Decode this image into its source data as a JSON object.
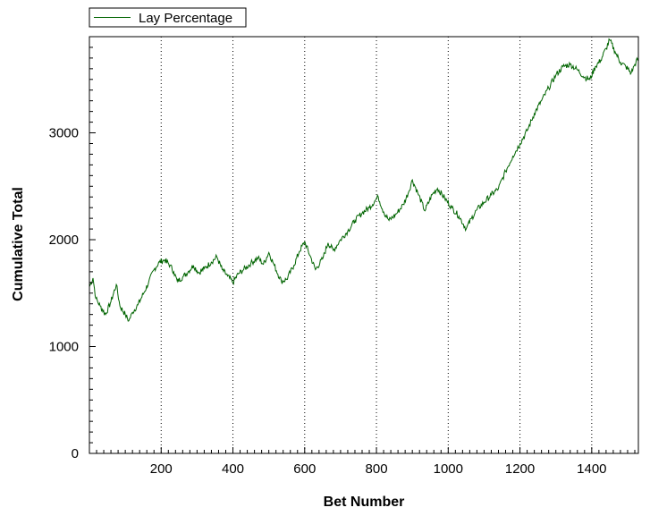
{
  "chart_data": {
    "type": "line",
    "xlabel": "Bet Number",
    "ylabel": "Cumulative Total",
    "xlim": [
      0,
      1530
    ],
    "ylim": [
      0,
      3900
    ],
    "x_ticks": [
      200,
      400,
      600,
      800,
      1000,
      1200,
      1400
    ],
    "y_ticks": [
      0,
      1000,
      2000,
      3000
    ],
    "y_minor_step": 100,
    "x_minor_step": 20,
    "grid": "vertical dotted at major x ticks",
    "legend": {
      "position": "top-left",
      "entries": [
        "Lay Percentage"
      ]
    },
    "colors": {
      "series": "#006400",
      "frame": "#000000",
      "grid": "#000000"
    },
    "series": [
      {
        "name": "Lay Percentage",
        "points": [
          [
            0,
            1560
          ],
          [
            10,
            1640
          ],
          [
            18,
            1450
          ],
          [
            30,
            1380
          ],
          [
            45,
            1300
          ],
          [
            60,
            1420
          ],
          [
            75,
            1580
          ],
          [
            85,
            1380
          ],
          [
            100,
            1300
          ],
          [
            110,
            1240
          ],
          [
            120,
            1320
          ],
          [
            135,
            1390
          ],
          [
            150,
            1490
          ],
          [
            165,
            1600
          ],
          [
            180,
            1720
          ],
          [
            195,
            1790
          ],
          [
            210,
            1810
          ],
          [
            225,
            1760
          ],
          [
            235,
            1700
          ],
          [
            245,
            1610
          ],
          [
            260,
            1650
          ],
          [
            275,
            1700
          ],
          [
            290,
            1760
          ],
          [
            305,
            1690
          ],
          [
            320,
            1730
          ],
          [
            340,
            1790
          ],
          [
            355,
            1840
          ],
          [
            370,
            1720
          ],
          [
            385,
            1660
          ],
          [
            400,
            1600
          ],
          [
            415,
            1680
          ],
          [
            430,
            1720
          ],
          [
            450,
            1780
          ],
          [
            470,
            1830
          ],
          [
            485,
            1770
          ],
          [
            500,
            1880
          ],
          [
            515,
            1760
          ],
          [
            535,
            1610
          ],
          [
            550,
            1630
          ],
          [
            570,
            1760
          ],
          [
            585,
            1890
          ],
          [
            600,
            1980
          ],
          [
            615,
            1850
          ],
          [
            630,
            1720
          ],
          [
            650,
            1820
          ],
          [
            665,
            1970
          ],
          [
            680,
            1900
          ],
          [
            700,
            2000
          ],
          [
            720,
            2080
          ],
          [
            740,
            2180
          ],
          [
            760,
            2250
          ],
          [
            780,
            2300
          ],
          [
            795,
            2360
          ],
          [
            805,
            2400
          ],
          [
            820,
            2260
          ],
          [
            835,
            2180
          ],
          [
            855,
            2240
          ],
          [
            875,
            2330
          ],
          [
            890,
            2450
          ],
          [
            900,
            2560
          ],
          [
            915,
            2440
          ],
          [
            935,
            2270
          ],
          [
            955,
            2420
          ],
          [
            970,
            2480
          ],
          [
            990,
            2390
          ],
          [
            1010,
            2300
          ],
          [
            1030,
            2220
          ],
          [
            1050,
            2100
          ],
          [
            1065,
            2200
          ],
          [
            1080,
            2280
          ],
          [
            1100,
            2350
          ],
          [
            1120,
            2420
          ],
          [
            1140,
            2480
          ],
          [
            1160,
            2640
          ],
          [
            1180,
            2780
          ],
          [
            1200,
            2900
          ],
          [
            1220,
            3020
          ],
          [
            1240,
            3180
          ],
          [
            1260,
            3300
          ],
          [
            1280,
            3420
          ],
          [
            1300,
            3540
          ],
          [
            1320,
            3620
          ],
          [
            1340,
            3640
          ],
          [
            1360,
            3590
          ],
          [
            1380,
            3520
          ],
          [
            1395,
            3500
          ],
          [
            1410,
            3620
          ],
          [
            1425,
            3680
          ],
          [
            1440,
            3790
          ],
          [
            1450,
            3870
          ],
          [
            1465,
            3760
          ],
          [
            1480,
            3660
          ],
          [
            1495,
            3620
          ],
          [
            1510,
            3560
          ],
          [
            1520,
            3640
          ],
          [
            1530,
            3700
          ]
        ]
      }
    ]
  }
}
